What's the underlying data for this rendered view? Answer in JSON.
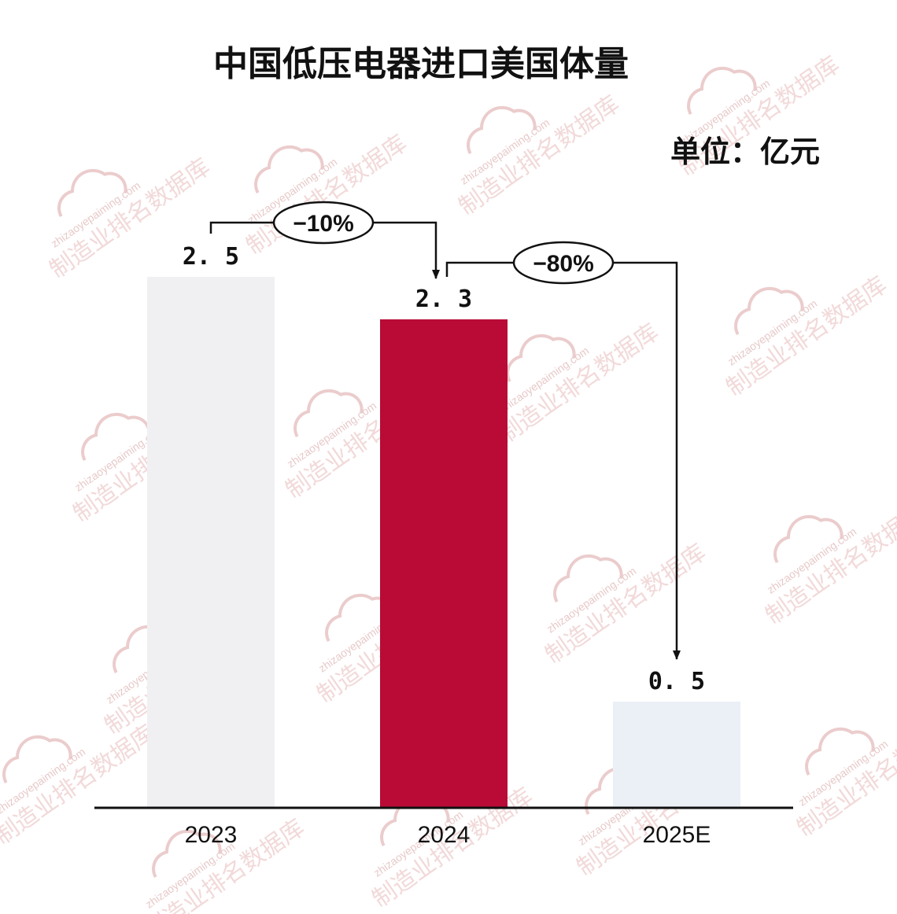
{
  "chart_data": {
    "type": "bar",
    "title": "中国低压电器进口美国体量",
    "unit_label": "单位：亿元",
    "categories": [
      "2023",
      "2024",
      "2025E"
    ],
    "values": [
      2.5,
      2.3,
      0.5
    ],
    "value_labels": [
      "2. 5",
      "2. 3",
      "0. 5"
    ],
    "ylim": [
      0,
      2.75
    ],
    "bar_colors": [
      "#f0f0f3",
      "#b90b36",
      "#ebeff6"
    ],
    "legend": "none",
    "grid": false,
    "annotations": [
      {
        "from": 0,
        "to": 1,
        "label": "−10%"
      },
      {
        "from": 1,
        "to": 2,
        "label": "−80%"
      }
    ]
  },
  "watermark": {
    "url": "zhizaoyepaiming.com",
    "text": "制造业排名数据库",
    "color": "#e8c4c4"
  }
}
